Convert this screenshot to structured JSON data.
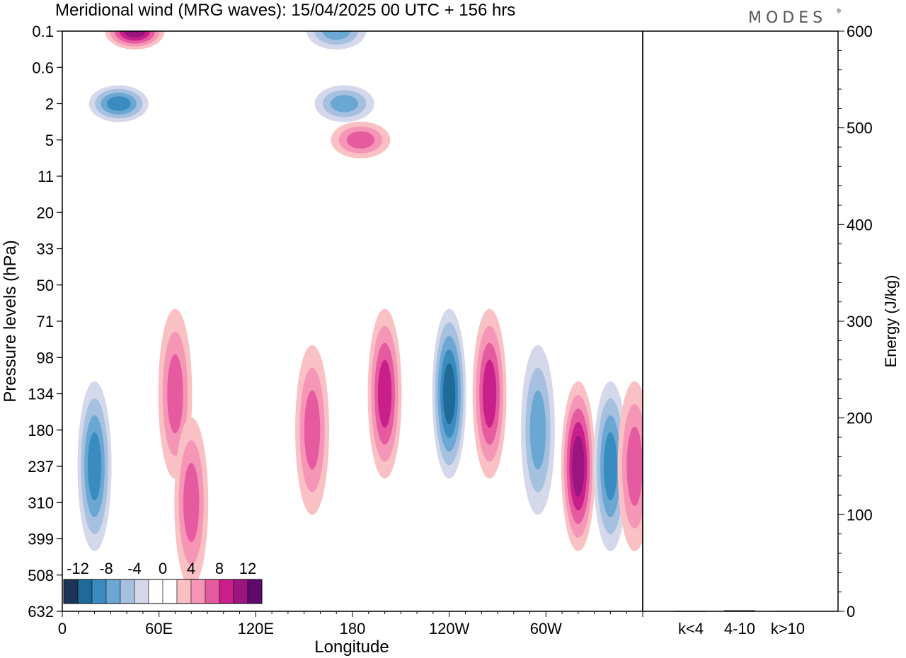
{
  "title": "Meridional wind (MRG waves):  15/04/2025  00 UTC  + 156 hrs",
  "logo": "MODES",
  "logo_mark": "®",
  "chart_data": [
    {
      "type": "heatmap",
      "title": "Meridional wind (MRG waves):  15/04/2025  00 UTC  + 156 hrs",
      "xlabel": "Longitude",
      "ylabel": "Pressure levels (hPa)",
      "x_ticks": [
        "0",
        "60E",
        "120E",
        "180",
        "120W",
        "60W"
      ],
      "y_ticks": [
        "0.1",
        "0.6",
        "2",
        "5",
        "11",
        "20",
        "33",
        "50",
        "71",
        "98",
        "134",
        "180",
        "237",
        "310",
        "399",
        "508",
        "632"
      ],
      "colorbar": {
        "tick_labels": [
          "-12",
          "-8",
          "-4",
          "0",
          "4",
          "8",
          "12"
        ],
        "colors": [
          "#1c3557",
          "#1f6a97",
          "#3a8cc0",
          "#6aa7d2",
          "#a6c0e0",
          "#d4d8ea",
          "#ffffff",
          "#ffffff",
          "#f9c1c4",
          "#f596b6",
          "#e65a9f",
          "#c91f8a",
          "#9a1580",
          "#5e0a6e"
        ]
      },
      "features": [
        {
          "lon": 45,
          "level": "0.1",
          "sign": "positive",
          "peak": 10
        },
        {
          "lon": 35,
          "level": "2",
          "sign": "negative",
          "peak": -8
        },
        {
          "lon": 170,
          "level": "0.1",
          "sign": "negative",
          "peak": -6
        },
        {
          "lon": 175,
          "level": "2",
          "sign": "negative",
          "peak": -6
        },
        {
          "lon": 185,
          "level": "5",
          "sign": "positive",
          "peak": 6
        },
        {
          "lon": 20,
          "level": "237",
          "sign": "negative",
          "peak": -8
        },
        {
          "lon": 70,
          "level": "134",
          "sign": "positive",
          "peak": 6
        },
        {
          "lon": 80,
          "level": "310",
          "sign": "positive",
          "peak": 6
        },
        {
          "lon": 155,
          "level": "180",
          "sign": "positive",
          "peak": 6
        },
        {
          "lon": 200,
          "level": "134",
          "sign": "positive",
          "peak": 8
        },
        {
          "lon": 240,
          "level": "134",
          "sign": "negative",
          "peak": -10
        },
        {
          "lon": 265,
          "level": "134",
          "sign": "positive",
          "peak": 8
        },
        {
          "lon": 295,
          "level": "180",
          "sign": "negative",
          "peak": -6
        },
        {
          "lon": 320,
          "level": "237",
          "sign": "positive",
          "peak": 12
        },
        {
          "lon": 340,
          "level": "237",
          "sign": "negative",
          "peak": -8
        },
        {
          "lon": 355,
          "level": "237",
          "sign": "positive",
          "peak": 6
        }
      ]
    },
    {
      "type": "bar",
      "categories": [
        "k<4",
        "4-10",
        "k>10"
      ],
      "values": [
        0.2,
        1.0,
        0.3
      ],
      "xlabel": "",
      "ylabel": "Energy (J/kg)",
      "ylim": [
        0,
        600
      ],
      "y_ticks": [
        "0",
        "100",
        "200",
        "300",
        "400",
        "500",
        "600"
      ],
      "bar_color": "#000000"
    }
  ]
}
